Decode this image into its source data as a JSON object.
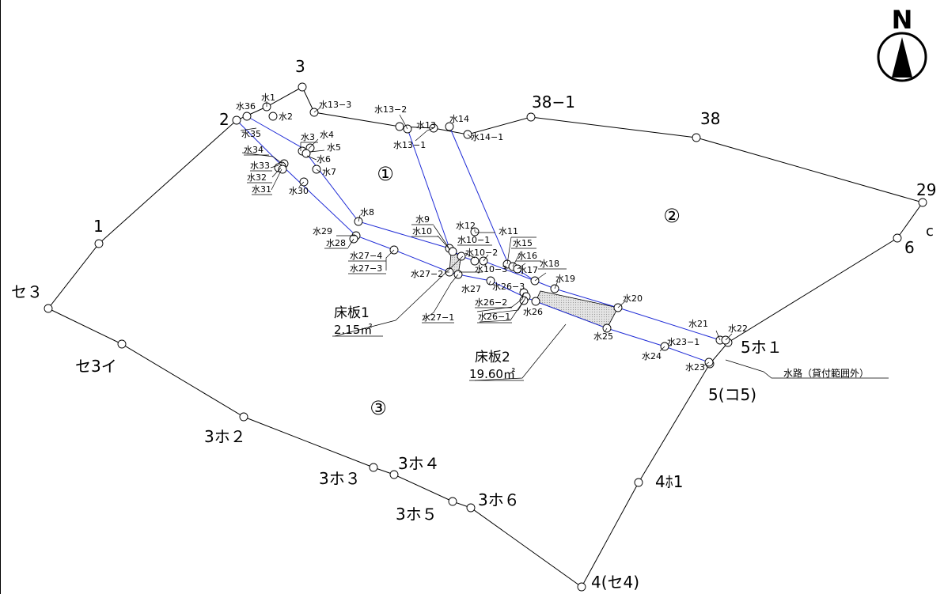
{
  "north": {
    "label": "N"
  },
  "parcels": {
    "p1": "①",
    "p2": "②",
    "p3": "③"
  },
  "boundary_labels": {
    "b2": "2",
    "b3": "3",
    "b38_1": "38−1",
    "b38": "38",
    "b29": "29",
    "bc": "c",
    "b6": "6",
    "b5ho1": "5ホ１",
    "b5ko5": "5(コ5)",
    "b4ho1": "4ﾎ1",
    "b4se4": "4(セ4)",
    "b3ho6": "3ホ６",
    "b3ho5": "3ホ５",
    "b3ho4": "3ホ４",
    "b3ho3": "3ホ３",
    "b3ho2": "3ホ２",
    "bse3i": "セ3イ",
    "bse3": "セ３",
    "b1": "1"
  },
  "water_labels": {
    "w1": "水1",
    "w2": "水2",
    "w3": "水3",
    "w4": "水4",
    "w5": "水5",
    "w6": "水6",
    "w7": "水7",
    "w8": "水8",
    "w9": "水9",
    "w10": "水10",
    "w10_1": "水10−1",
    "w10_2": "水10−2",
    "w10_3": "水10−3",
    "w11": "水11",
    "w12": "水12",
    "w13": "水13",
    "w13_1": "水13−1",
    "w13_2": "水13−2",
    "w13_3": "水13−3",
    "w14": "水14",
    "w14_1": "水14−1",
    "w15": "水15",
    "w16": "水16",
    "w17": "水17",
    "w18": "水18",
    "w19": "水19",
    "w20": "水20",
    "w21": "水21",
    "w22": "水22",
    "w23": "水23",
    "w23_1": "水23−1",
    "w24": "水24",
    "w25": "水25",
    "w26": "水26",
    "w26_1": "水26−1",
    "w26_2": "水26−2",
    "w26_3": "水26−3",
    "w27": "水27",
    "w27_1": "水27−1",
    "w27_2": "水27−2",
    "w27_3": "水27−3",
    "w27_4": "水27−4",
    "w28": "水28",
    "w29": "水29",
    "w30": "水30",
    "w31": "水31",
    "w32": "水32",
    "w33": "水33",
    "w34": "水34",
    "w35": "水35",
    "w36": "水36"
  },
  "floor_slabs": [
    {
      "name": "床板1",
      "area": "2.15㎡"
    },
    {
      "name": "床板2",
      "area": "19.60㎡"
    }
  ],
  "notes": {
    "waterway": "水路（貸付範囲外）"
  }
}
